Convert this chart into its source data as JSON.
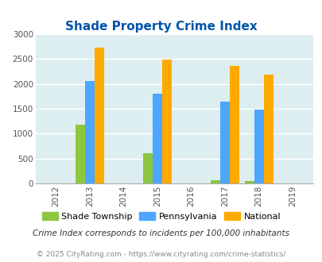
{
  "title": "Shade Property Crime Index",
  "years": [
    2013,
    2015,
    2017,
    2018
  ],
  "shade_township": [
    1180,
    610,
    60,
    50
  ],
  "pennsylvania": [
    2060,
    1810,
    1640,
    1490
  ],
  "national": [
    2730,
    2490,
    2360,
    2190
  ],
  "x_ticks": [
    2012,
    2013,
    2014,
    2015,
    2016,
    2017,
    2018,
    2019
  ],
  "ylim": [
    0,
    3000
  ],
  "yticks": [
    0,
    500,
    1000,
    1500,
    2000,
    2500,
    3000
  ],
  "color_shade": "#8dc63f",
  "color_pa": "#4da6ff",
  "color_national": "#ffaa00",
  "bg_color": "#ddeef0",
  "grid_color": "#ffffff",
  "title_color": "#0055aa",
  "legend_labels": [
    "Shade Township",
    "Pennsylvania",
    "National"
  ],
  "footnote1": "Crime Index corresponds to incidents per 100,000 inhabitants",
  "footnote2": "© 2025 CityRating.com - https://www.cityrating.com/crime-statistics/",
  "bar_width": 0.28,
  "xlim": [
    2011.4,
    2019.6
  ]
}
